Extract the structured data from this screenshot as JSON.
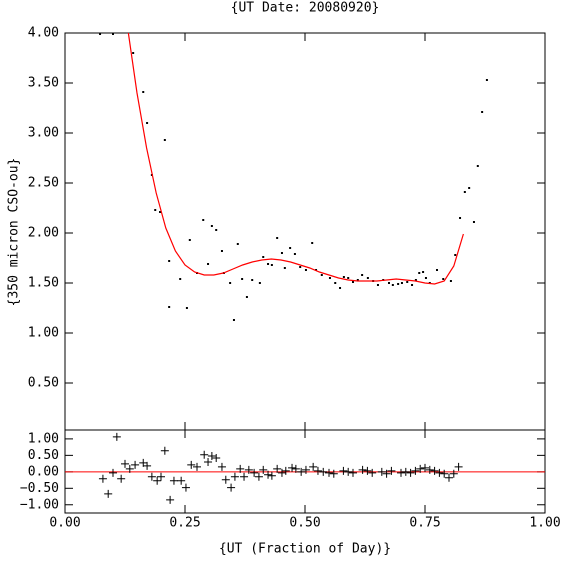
{
  "chart_data": [
    {
      "type": "scatter",
      "title": "{UT Date: 20080920}",
      "ylabel": "{350 micron CSO-ou}",
      "xlim": [
        0,
        1
      ],
      "ylim": [
        0.03,
        4.0
      ],
      "xticks": [
        0,
        0.25,
        0.5,
        0.75,
        1
      ],
      "yticks": [
        {
          "value": 4,
          "label": "4.00"
        },
        {
          "value": 3.5,
          "label": "3.50"
        },
        {
          "value": 3,
          "label": "3.00"
        },
        {
          "value": 2.5,
          "label": "2.50"
        },
        {
          "value": 2,
          "label": "2.00"
        },
        {
          "value": 1.5,
          "label": "1.50"
        },
        {
          "value": 1,
          "label": "1.00"
        },
        {
          "value": 0.5,
          "label": "0.50"
        }
      ],
      "series": [
        {
          "type": "scatter",
          "color": "#000000",
          "x": [
            0.073,
            0.1,
            0.142,
            0.163,
            0.171,
            0.181,
            0.188,
            0.198,
            0.208,
            0.217,
            0.217,
            0.24,
            0.254,
            0.26,
            0.275,
            0.288,
            0.298,
            0.306,
            0.315,
            0.327,
            0.331,
            0.344,
            0.352,
            0.36,
            0.369,
            0.379,
            0.39,
            0.406,
            0.413,
            0.423,
            0.431,
            0.442,
            0.452,
            0.458,
            0.469,
            0.479,
            0.49,
            0.502,
            0.515,
            0.523,
            0.535,
            0.552,
            0.563,
            0.573,
            0.581,
            0.59,
            0.6,
            0.61,
            0.619,
            0.631,
            0.642,
            0.652,
            0.663,
            0.675,
            0.683,
            0.694,
            0.702,
            0.713,
            0.723,
            0.731,
            0.738,
            0.746,
            0.752,
            0.76,
            0.775,
            0.788,
            0.804,
            0.813,
            0.823,
            0.833,
            0.842,
            0.852,
            0.86,
            0.869,
            0.879
          ],
          "values": [
            3.99,
            3.99,
            3.8,
            3.41,
            3.1,
            2.58,
            2.23,
            2.21,
            2.93,
            1.72,
            1.26,
            1.54,
            1.25,
            1.93,
            1.6,
            2.13,
            1.69,
            2.07,
            2.03,
            1.82,
            1.6,
            1.5,
            1.13,
            1.89,
            1.54,
            1.36,
            1.53,
            1.5,
            1.76,
            1.69,
            1.68,
            1.95,
            1.8,
            1.65,
            1.85,
            1.79,
            1.66,
            1.63,
            1.9,
            1.63,
            1.58,
            1.55,
            1.5,
            1.45,
            1.56,
            1.55,
            1.51,
            1.53,
            1.58,
            1.55,
            1.52,
            1.48,
            1.53,
            1.5,
            1.48,
            1.49,
            1.5,
            1.51,
            1.48,
            1.53,
            1.6,
            1.61,
            1.55,
            1.5,
            1.63,
            1.54,
            1.52,
            1.78,
            2.15,
            2.41,
            2.45,
            2.11,
            2.67,
            3.21,
            3.53
          ]
        },
        {
          "type": "line",
          "color": "#ff0000",
          "x": [
            0.132,
            0.15,
            0.17,
            0.19,
            0.21,
            0.23,
            0.25,
            0.27,
            0.29,
            0.31,
            0.33,
            0.35,
            0.37,
            0.39,
            0.41,
            0.43,
            0.45,
            0.47,
            0.49,
            0.51,
            0.53,
            0.55,
            0.57,
            0.59,
            0.61,
            0.63,
            0.65,
            0.67,
            0.69,
            0.71,
            0.73,
            0.75,
            0.77,
            0.79,
            0.81,
            0.83
          ],
          "values": [
            4.0,
            3.4,
            2.85,
            2.4,
            2.05,
            1.82,
            1.68,
            1.61,
            1.58,
            1.58,
            1.6,
            1.64,
            1.68,
            1.71,
            1.73,
            1.74,
            1.73,
            1.71,
            1.68,
            1.65,
            1.61,
            1.58,
            1.55,
            1.53,
            1.52,
            1.52,
            1.52,
            1.53,
            1.54,
            1.53,
            1.52,
            1.5,
            1.49,
            1.52,
            1.67,
            1.99
          ]
        }
      ]
    },
    {
      "type": "scatter",
      "xlabel": "{UT (Fraction of Day)}",
      "xlim": [
        0,
        1
      ],
      "ylim": [
        -1.25,
        1.27
      ],
      "xticks": [
        {
          "value": 0,
          "label": "0.00"
        },
        {
          "value": 0.25,
          "label": "0.25"
        },
        {
          "value": 0.5,
          "label": "0.50"
        },
        {
          "value": 0.75,
          "label": "0.75"
        },
        {
          "value": 1,
          "label": "1.00"
        }
      ],
      "yticks": [
        {
          "value": 1,
          "label": "1.00"
        },
        {
          "value": 0.5,
          "label": "0.50"
        },
        {
          "value": 0,
          "label": "0.00"
        },
        {
          "value": -0.5,
          "label": "−0.50"
        },
        {
          "value": -1,
          "label": "−1.00"
        }
      ],
      "hline": {
        "value": 0,
        "color": "#ff0000"
      },
      "series": [
        {
          "type": "scatter",
          "marker": "plus",
          "color": "#000000",
          "x": [
            0.079,
            0.09,
            0.1,
            0.108,
            0.117,
            0.125,
            0.135,
            0.146,
            0.163,
            0.171,
            0.181,
            0.192,
            0.2,
            0.208,
            0.219,
            0.227,
            0.242,
            0.252,
            0.263,
            0.275,
            0.29,
            0.298,
            0.306,
            0.315,
            0.327,
            0.335,
            0.346,
            0.354,
            0.365,
            0.373,
            0.383,
            0.394,
            0.404,
            0.413,
            0.423,
            0.431,
            0.442,
            0.452,
            0.46,
            0.473,
            0.481,
            0.492,
            0.502,
            0.517,
            0.527,
            0.538,
            0.55,
            0.56,
            0.58,
            0.59,
            0.6,
            0.62,
            0.63,
            0.64,
            0.66,
            0.67,
            0.68,
            0.7,
            0.71,
            0.72,
            0.73,
            0.74,
            0.75,
            0.76,
            0.77,
            0.78,
            0.79,
            0.8,
            0.81,
            0.82
          ],
          "values": [
            -0.21,
            -0.67,
            -0.03,
            1.06,
            -0.21,
            0.24,
            0.09,
            0.21,
            0.27,
            0.18,
            -0.15,
            -0.27,
            -0.15,
            0.64,
            -0.85,
            -0.27,
            -0.27,
            -0.48,
            0.21,
            0.15,
            0.52,
            0.3,
            0.48,
            0.42,
            0.15,
            -0.24,
            -0.48,
            -0.15,
            0.09,
            -0.15,
            0.06,
            -0.03,
            -0.15,
            0.06,
            -0.09,
            -0.12,
            0.09,
            -0.03,
            0.03,
            0.12,
            0.09,
            0,
            0.06,
            0.15,
            0.03,
            0,
            -0.03,
            -0.06,
            0.03,
            0,
            -0.03,
            0.06,
            0.03,
            -0.03,
            0,
            -0.06,
            0.03,
            -0.03,
            0,
            -0.03,
            0.03,
            0.09,
            0.12,
            0.06,
            0.03,
            -0.03,
            -0.06,
            -0.18,
            -0.06,
            0.15
          ]
        }
      ]
    }
  ]
}
